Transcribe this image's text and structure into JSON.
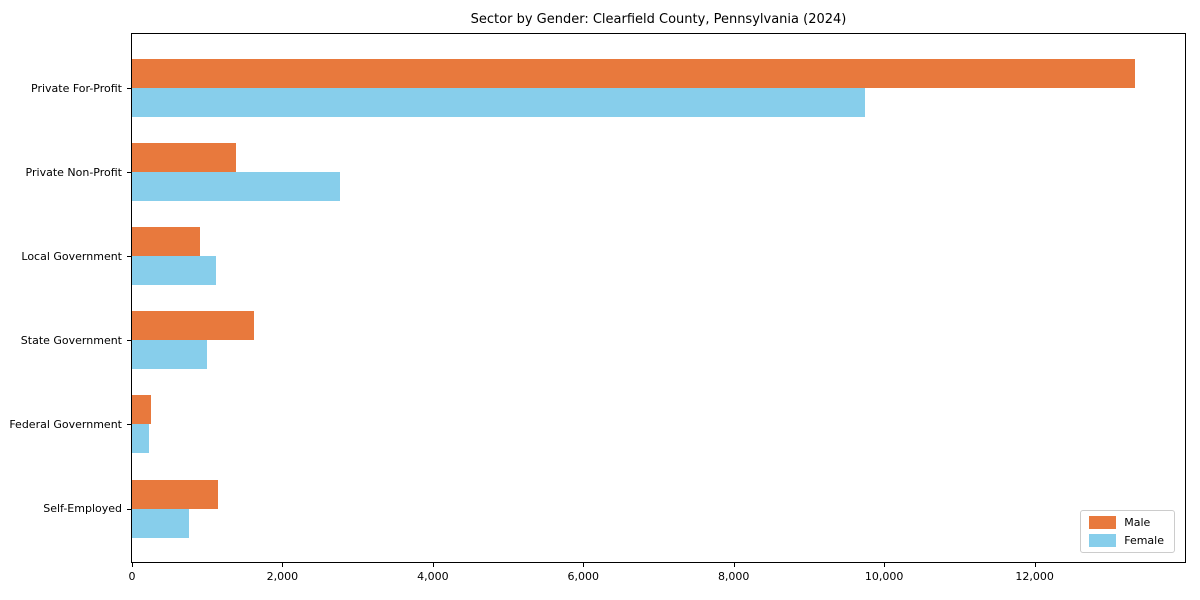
{
  "figure": {
    "background": "#ffffff"
  },
  "chart_data": {
    "type": "bar",
    "orientation": "horizontal",
    "title": "Sector by Gender: Clearfield County, Pennsylvania (2024)",
    "xlabel": "",
    "ylabel": "",
    "categories": [
      "Private For-Profit",
      "Private Non-Profit",
      "Local Government",
      "State Government",
      "Federal Government",
      "Self-Employed"
    ],
    "series": [
      {
        "name": "Male",
        "color": "#E8793D",
        "values": [
          13330,
          1380,
          900,
          1620,
          250,
          1140
        ]
      },
      {
        "name": "Female",
        "color": "#87CEEB",
        "values": [
          9750,
          2760,
          1115,
          1000,
          225,
          755
        ]
      }
    ],
    "xlim": [
      0,
      14000
    ],
    "xticks": [
      0,
      2000,
      4000,
      6000,
      8000,
      10000,
      12000
    ],
    "xtick_labels": [
      "0",
      "2,000",
      "4,000",
      "6,000",
      "8,000",
      "10,000",
      "12,000"
    ],
    "grid": false,
    "legend": {
      "position": "lower right",
      "entries": [
        "Male",
        "Female"
      ]
    }
  }
}
